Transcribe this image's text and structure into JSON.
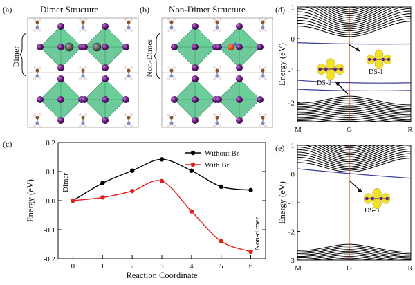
{
  "panel_a": {
    "label": "(a)",
    "title": "Dimer Structure",
    "side_label": "Dimer"
  },
  "panel_b": {
    "label": "(b)",
    "title": "Non-Dimer Structure",
    "side_label": "Non-Dimer"
  },
  "panel_c": {
    "label": "(c)",
    "start_label": "Dimer",
    "end_label": "Non-dimer"
  },
  "panel_d": {
    "label": "(d)",
    "ylabel": "Energy (eV)",
    "kpoints": [
      "M",
      "G",
      "R"
    ],
    "ds1": "DS-1",
    "ds2": "DS-2",
    "yticks": [
      "1",
      "0",
      "-1",
      "-2"
    ],
    "ylim": [
      -2.6,
      1.0
    ]
  },
  "panel_e": {
    "label": "(e)",
    "ylabel": "Energy (eV)",
    "kpoints": [
      "M",
      "G",
      "R"
    ],
    "ds3": "DS-3",
    "yticks": [
      "1",
      "0",
      "-1",
      "-2",
      "-3"
    ],
    "ylim": [
      -3.0,
      1.0
    ]
  },
  "colors": {
    "black_series": "#000000",
    "red_series": "#e0201b",
    "defect_band": "#3a3f9a",
    "gamma_line": "#e0201b",
    "octahedra": "#3db878"
  },
  "chart_data": {
    "type": "line",
    "xlabel": "Reaction Coordinate",
    "ylabel": "Energy (eV)",
    "x": [
      0,
      1,
      2,
      3,
      4,
      5,
      6
    ],
    "xticks": [
      "0",
      "1",
      "2",
      "3",
      "4",
      "5",
      "6"
    ],
    "yticks": [
      "0.2",
      "0.1",
      "0.0",
      "-0.1",
      "-0.2"
    ],
    "ylim": [
      -0.2,
      0.2
    ],
    "xlim": [
      -0.5,
      6.5
    ],
    "series": [
      {
        "name": "Without Br",
        "color": "#000000",
        "values": [
          0.0,
          0.06,
          0.103,
          0.142,
          0.103,
          0.048,
          0.036
        ]
      },
      {
        "name": "With Br",
        "color": "#e0201b",
        "values": [
          0.0,
          0.011,
          0.033,
          0.067,
          -0.037,
          -0.14,
          -0.176
        ]
      }
    ],
    "legend_position": "top-right"
  }
}
